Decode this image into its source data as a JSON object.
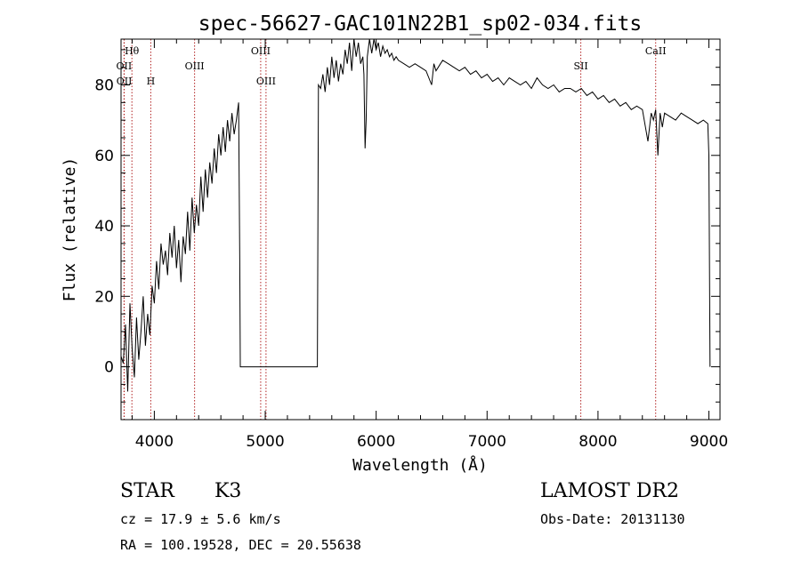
{
  "chart_data": {
    "type": "line",
    "title": "spec-56627-GAC101N22B1_sp02-034.fits",
    "xlabel": "Wavelength (Å)",
    "ylabel": "Flux (relative)",
    "xlim": [
      3700,
      9100
    ],
    "ylim": [
      -15,
      93
    ],
    "xticks": [
      4000,
      5000,
      6000,
      7000,
      8000,
      9000
    ],
    "yticks": [
      0,
      20,
      40,
      60,
      80
    ],
    "grid": false,
    "series": [
      {
        "name": "flux",
        "color": "#000000",
        "x": [
          3700,
          3720,
          3740,
          3760,
          3780,
          3800,
          3820,
          3840,
          3860,
          3880,
          3900,
          3920,
          3940,
          3960,
          3980,
          4000,
          4020,
          4040,
          4060,
          4080,
          4100,
          4120,
          4140,
          4160,
          4180,
          4200,
          4220,
          4240,
          4260,
          4280,
          4300,
          4320,
          4340,
          4360,
          4380,
          4400,
          4420,
          4440,
          4460,
          4480,
          4500,
          4520,
          4540,
          4560,
          4580,
          4600,
          4620,
          4640,
          4660,
          4680,
          4700,
          4720,
          4740,
          4760,
          4770,
          4775,
          4780,
          5460,
          5470,
          5475,
          5480,
          5500,
          5520,
          5540,
          5560,
          5580,
          5600,
          5620,
          5640,
          5660,
          5680,
          5700,
          5720,
          5740,
          5760,
          5780,
          5800,
          5820,
          5840,
          5860,
          5880,
          5890,
          5900,
          5910,
          5920,
          5940,
          5960,
          5980,
          6000,
          6020,
          6040,
          6060,
          6080,
          6100,
          6120,
          6140,
          6160,
          6180,
          6200,
          6250,
          6300,
          6350,
          6400,
          6450,
          6500,
          6520,
          6540,
          6560,
          6580,
          6600,
          6650,
          6700,
          6750,
          6800,
          6850,
          6900,
          6950,
          7000,
          7050,
          7100,
          7150,
          7200,
          7250,
          7300,
          7350,
          7400,
          7450,
          7500,
          7550,
          7600,
          7650,
          7700,
          7750,
          7800,
          7850,
          7900,
          7950,
          8000,
          8050,
          8100,
          8150,
          8200,
          8250,
          8300,
          8350,
          8400,
          8450,
          8480,
          8500,
          8520,
          8540,
          8560,
          8580,
          8600,
          8650,
          8700,
          8750,
          8800,
          8850,
          8900,
          8950,
          8990,
          9000,
          9010
        ],
        "values": [
          3,
          1,
          12,
          -7,
          18,
          5,
          -3,
          14,
          2,
          10,
          20,
          6,
          15,
          9,
          23,
          18,
          30,
          22,
          35,
          29,
          33,
          26,
          38,
          31,
          40,
          28,
          36,
          24,
          37,
          32,
          44,
          33,
          48,
          38,
          46,
          40,
          54,
          44,
          56,
          48,
          58,
          52,
          62,
          55,
          66,
          60,
          68,
          61,
          70,
          64,
          72,
          66,
          70,
          75,
          30,
          0,
          0,
          0,
          0,
          40,
          80,
          79,
          83,
          78,
          85,
          80,
          88,
          82,
          87,
          81,
          86,
          83,
          90,
          86,
          92,
          84,
          95,
          88,
          92,
          86,
          88,
          83,
          62,
          70,
          88,
          93,
          89,
          94,
          90,
          92,
          88,
          91,
          89,
          90,
          88,
          89,
          87,
          88,
          87,
          86,
          85,
          86,
          85,
          84,
          80,
          86,
          84,
          85,
          86,
          87,
          86,
          85,
          84,
          85,
          83,
          84,
          82,
          83,
          81,
          82,
          80,
          82,
          81,
          80,
          81,
          79,
          82,
          80,
          79,
          80,
          78,
          79,
          79,
          78,
          79,
          77,
          78,
          76,
          77,
          75,
          76,
          74,
          75,
          73,
          74,
          73,
          64,
          72,
          70,
          73,
          60,
          72,
          68,
          72,
          71,
          70,
          72,
          71,
          70,
          69,
          70,
          69,
          60,
          0
        ]
      }
    ],
    "emission_lines": [
      {
        "label": "Hθ",
        "x": 3798,
        "row": 0
      },
      {
        "label": "OII",
        "x": 3727,
        "row": 1
      },
      {
        "label": "OII",
        "x": 3729,
        "row": 2
      },
      {
        "label": "H",
        "x": 3968,
        "row": 2
      },
      {
        "label": "OIII",
        "x": 4363,
        "row": 1
      },
      {
        "label": "OIII",
        "x": 4959,
        "row": 0
      },
      {
        "label": "OIII",
        "x": 5007,
        "row": 2
      },
      {
        "label": "SII",
        "x": 7845,
        "row": 1
      },
      {
        "label": "CaII",
        "x": 8520,
        "row": 0
      }
    ]
  },
  "info": {
    "object_class": "STAR",
    "subclass": "K3",
    "survey": "LAMOST DR2",
    "redshift": "cz = 17.9 ± 5.6 km/s",
    "obs_date": "Obs-Date: 20131130",
    "coords": "RA = 100.19528, DEC =  20.55638"
  },
  "colors": {
    "line_marker": "#b22222",
    "axes": "#000000"
  }
}
